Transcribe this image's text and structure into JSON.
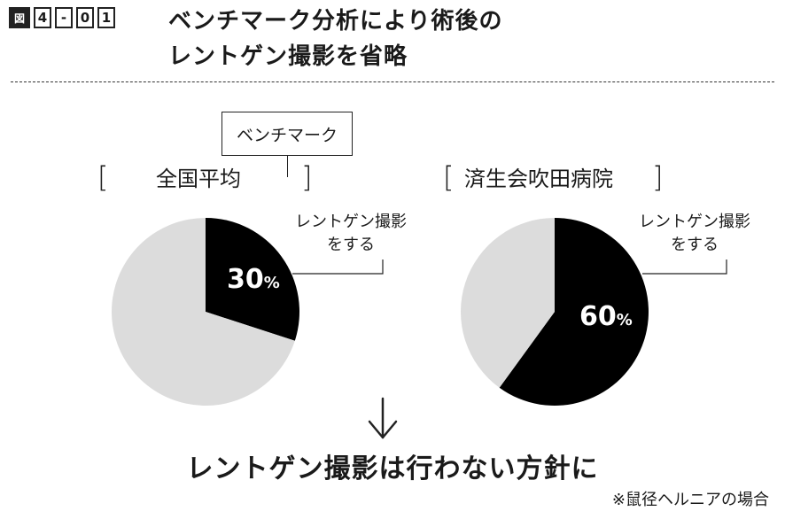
{
  "figure": {
    "label_prefix": "図",
    "label_chars": [
      "4",
      "-",
      "0",
      "1"
    ],
    "title_line1": "ベンチマーク分析により術後の",
    "title_line2": "レントゲン撮影を省略"
  },
  "benchmark_tag": "ベンチマーク",
  "bracket_open": "[",
  "bracket_close": "]",
  "conclusion": "レントゲン撮影は行わない方針に",
  "footnote": "※鼠径ヘルニアの場合",
  "colors": {
    "highlight": "#000000",
    "rest": "#dcdcdc",
    "text": "#1a1a1a"
  },
  "chart_data": [
    {
      "type": "pie",
      "title": "全国平均",
      "slices": [
        {
          "label": "レントゲン撮影をする",
          "value": 30,
          "color": "#000000"
        },
        {
          "label": "",
          "value": 70,
          "color": "#dcdcdc"
        }
      ],
      "callout_line1": "レントゲン撮影",
      "callout_line2": "をする",
      "data_label_num": "30",
      "data_label_sym": "%"
    },
    {
      "type": "pie",
      "title": "済生会吹田病院",
      "slices": [
        {
          "label": "レントゲン撮影をする",
          "value": 60,
          "color": "#000000"
        },
        {
          "label": "",
          "value": 40,
          "color": "#dcdcdc"
        }
      ],
      "callout_line1": "レントゲン撮影",
      "callout_line2": "をする",
      "data_label_num": "60",
      "data_label_sym": "%"
    }
  ]
}
